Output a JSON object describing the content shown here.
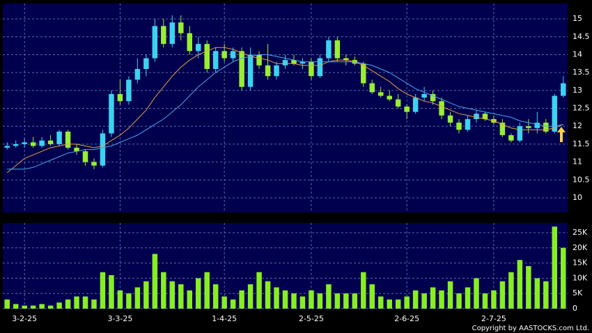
{
  "chart_data": {
    "type": "candlestick",
    "categories": [
      null,
      null,
      "3-2-25",
      null,
      null,
      null,
      null,
      null,
      null,
      null,
      null,
      null,
      null,
      "3-3-25",
      null,
      null,
      null,
      null,
      null,
      null,
      null,
      null,
      null,
      null,
      null,
      "1-4-25",
      null,
      null,
      null,
      null,
      null,
      null,
      null,
      null,
      null,
      "2-5-25",
      null,
      null,
      null,
      null,
      null,
      null,
      null,
      null,
      null,
      null,
      "2-6-25",
      null,
      null,
      null,
      null,
      null,
      null,
      null,
      null,
      null,
      "2-7-25",
      null,
      null,
      null,
      null,
      null,
      null,
      null,
      null
    ],
    "open": [
      11.4,
      11.45,
      11.5,
      11.55,
      11.45,
      11.6,
      11.5,
      11.85,
      11.4,
      11.3,
      11.0,
      10.9,
      11.8,
      12.9,
      12.7,
      13.3,
      13.6,
      13.9,
      14.8,
      14.3,
      14.9,
      14.6,
      14.1,
      14.3,
      13.6,
      14.1,
      13.9,
      14.1,
      13.1,
      14.0,
      13.7,
      13.4,
      13.7,
      13.85,
      13.75,
      13.8,
      13.4,
      13.9,
      14.4,
      13.9,
      13.85,
      13.75,
      13.2,
      12.95,
      12.85,
      12.75,
      12.55,
      12.4,
      12.8,
      12.9,
      12.7,
      12.3,
      12.1,
      11.9,
      12.2,
      12.35,
      12.2,
      12.1,
      11.75,
      11.6,
      12.0,
      11.95,
      12.1,
      11.85,
      12.85
    ],
    "high": [
      11.55,
      11.6,
      11.65,
      11.7,
      11.7,
      11.75,
      11.9,
      11.9,
      11.5,
      11.35,
      11.1,
      11.9,
      13.0,
      13.3,
      13.4,
      13.9,
      14.0,
      15.0,
      15.0,
      15.1,
      15.1,
      14.8,
      14.5,
      14.4,
      14.2,
      14.3,
      14.2,
      14.2,
      14.2,
      14.1,
      14.3,
      13.8,
      14.0,
      14.0,
      13.9,
      13.9,
      14.0,
      14.5,
      14.5,
      14.0,
      13.95,
      13.8,
      13.3,
      13.1,
      13.0,
      12.9,
      12.6,
      12.9,
      13.1,
      13.0,
      12.8,
      12.4,
      12.2,
      12.3,
      12.45,
      12.4,
      12.3,
      12.2,
      11.8,
      12.1,
      12.2,
      12.4,
      12.2,
      12.9,
      13.4
    ],
    "low": [
      11.35,
      11.4,
      11.4,
      11.4,
      11.4,
      11.45,
      11.45,
      11.35,
      11.2,
      10.9,
      10.8,
      10.85,
      11.7,
      12.6,
      12.6,
      13.2,
      13.4,
      13.8,
      14.2,
      14.2,
      14.4,
      14.0,
      13.9,
      13.5,
      13.5,
      13.8,
      13.8,
      13.0,
      13.0,
      13.6,
      13.3,
      13.3,
      13.6,
      13.7,
      13.6,
      13.3,
      13.35,
      13.8,
      13.8,
      13.7,
      13.7,
      13.1,
      12.9,
      12.8,
      12.7,
      12.5,
      12.2,
      12.35,
      12.7,
      12.6,
      12.2,
      12.0,
      11.8,
      11.85,
      12.1,
      12.15,
      12.05,
      11.7,
      11.55,
      11.55,
      11.8,
      11.8,
      11.8,
      11.8,
      12.8
    ],
    "close": [
      11.45,
      11.5,
      11.55,
      11.45,
      11.6,
      11.5,
      11.85,
      11.4,
      11.3,
      11.0,
      10.9,
      11.8,
      12.9,
      12.7,
      13.3,
      13.6,
      13.9,
      14.8,
      14.3,
      14.9,
      14.6,
      14.1,
      14.3,
      13.6,
      14.1,
      13.9,
      14.1,
      13.1,
      14.0,
      13.7,
      13.4,
      13.7,
      13.85,
      13.75,
      13.8,
      13.4,
      13.9,
      14.4,
      13.9,
      13.85,
      13.75,
      13.2,
      12.95,
      12.85,
      12.75,
      12.55,
      12.4,
      12.8,
      12.9,
      12.7,
      12.3,
      12.1,
      11.9,
      12.2,
      12.35,
      12.2,
      12.1,
      11.75,
      11.6,
      12.0,
      11.95,
      12.1,
      11.85,
      12.85,
      13.2
    ],
    "volume": [
      3000,
      1500,
      1000,
      1000,
      1500,
      1000,
      2000,
      3000,
      4000,
      4000,
      3000,
      12000,
      11000,
      6000,
      5000,
      7000,
      9000,
      18000,
      12000,
      9000,
      8000,
      6000,
      10000,
      12000,
      8000,
      4000,
      3000,
      6000,
      8000,
      12000,
      9000,
      7000,
      6000,
      5000,
      4000,
      6000,
      5000,
      8000,
      5000,
      5000,
      5000,
      12000,
      8000,
      4000,
      3000,
      3000,
      4000,
      6000,
      5000,
      7000,
      6000,
      9000,
      5000,
      7000,
      10000,
      5000,
      6000,
      9000,
      12000,
      16000,
      14000,
      10000,
      9000,
      27000,
      20000
    ],
    "lines": [
      {
        "color": "#e8a040",
        "values": [
          10.7,
          10.9,
          11.1,
          11.2,
          11.3,
          11.4,
          11.45,
          11.5,
          11.5,
          11.45,
          11.4,
          11.45,
          11.6,
          11.75,
          11.95,
          12.2,
          12.45,
          12.8,
          13.1,
          13.4,
          13.65,
          13.85,
          14.0,
          14.1,
          14.2,
          14.2,
          14.15,
          14.05,
          13.95,
          13.9,
          13.85,
          13.75,
          13.75,
          13.75,
          13.7,
          13.7,
          13.7,
          13.8,
          13.85,
          13.85,
          13.8,
          13.7,
          13.55,
          13.4,
          13.25,
          13.05,
          12.9,
          12.8,
          12.7,
          12.65,
          12.55,
          12.45,
          12.35,
          12.3,
          12.25,
          12.2,
          12.15,
          12.05,
          11.95,
          11.9,
          11.9,
          11.9,
          11.9,
          11.95,
          12.05
        ]
      },
      {
        "color": "#4aa8f0",
        "values": [
          10.8,
          10.8,
          10.8,
          10.85,
          10.95,
          11.05,
          11.15,
          11.25,
          11.3,
          11.35,
          11.35,
          11.4,
          11.45,
          11.55,
          11.65,
          11.75,
          11.9,
          12.05,
          12.2,
          12.4,
          12.6,
          12.85,
          13.1,
          13.3,
          13.5,
          13.65,
          13.8,
          13.9,
          13.95,
          14.0,
          14.0,
          13.95,
          13.9,
          13.85,
          13.8,
          13.8,
          13.8,
          13.8,
          13.8,
          13.8,
          13.8,
          13.75,
          13.7,
          13.6,
          13.5,
          13.35,
          13.2,
          13.05,
          12.95,
          12.85,
          12.75,
          12.65,
          12.55,
          12.5,
          12.45,
          12.4,
          12.35,
          12.3,
          12.25,
          12.15,
          12.1,
          12.05,
          12.0,
          12.0,
          12.05
        ]
      }
    ],
    "up_color": "#3cd2f0",
    "down_color": "#99ee33",
    "volume_color": "#88ee22",
    "ylim": [
      9.59,
      15.43
    ],
    "yticks": [
      10,
      10.5,
      11,
      11.5,
      12,
      12.5,
      13,
      13.5,
      14,
      14.5,
      15
    ],
    "vlim": [
      0,
      28200
    ],
    "vticks": [
      0,
      {
        "value": 5000,
        "label": "5K"
      },
      {
        "value": 10000,
        "label": "10K"
      },
      {
        "value": 15000,
        "label": "15K"
      },
      {
        "value": 20000,
        "label": "20K"
      },
      {
        "value": 25000,
        "label": "25K"
      }
    ],
    "grid": true,
    "copyright": "Copyright by AASTOCKS.com Ltd."
  }
}
